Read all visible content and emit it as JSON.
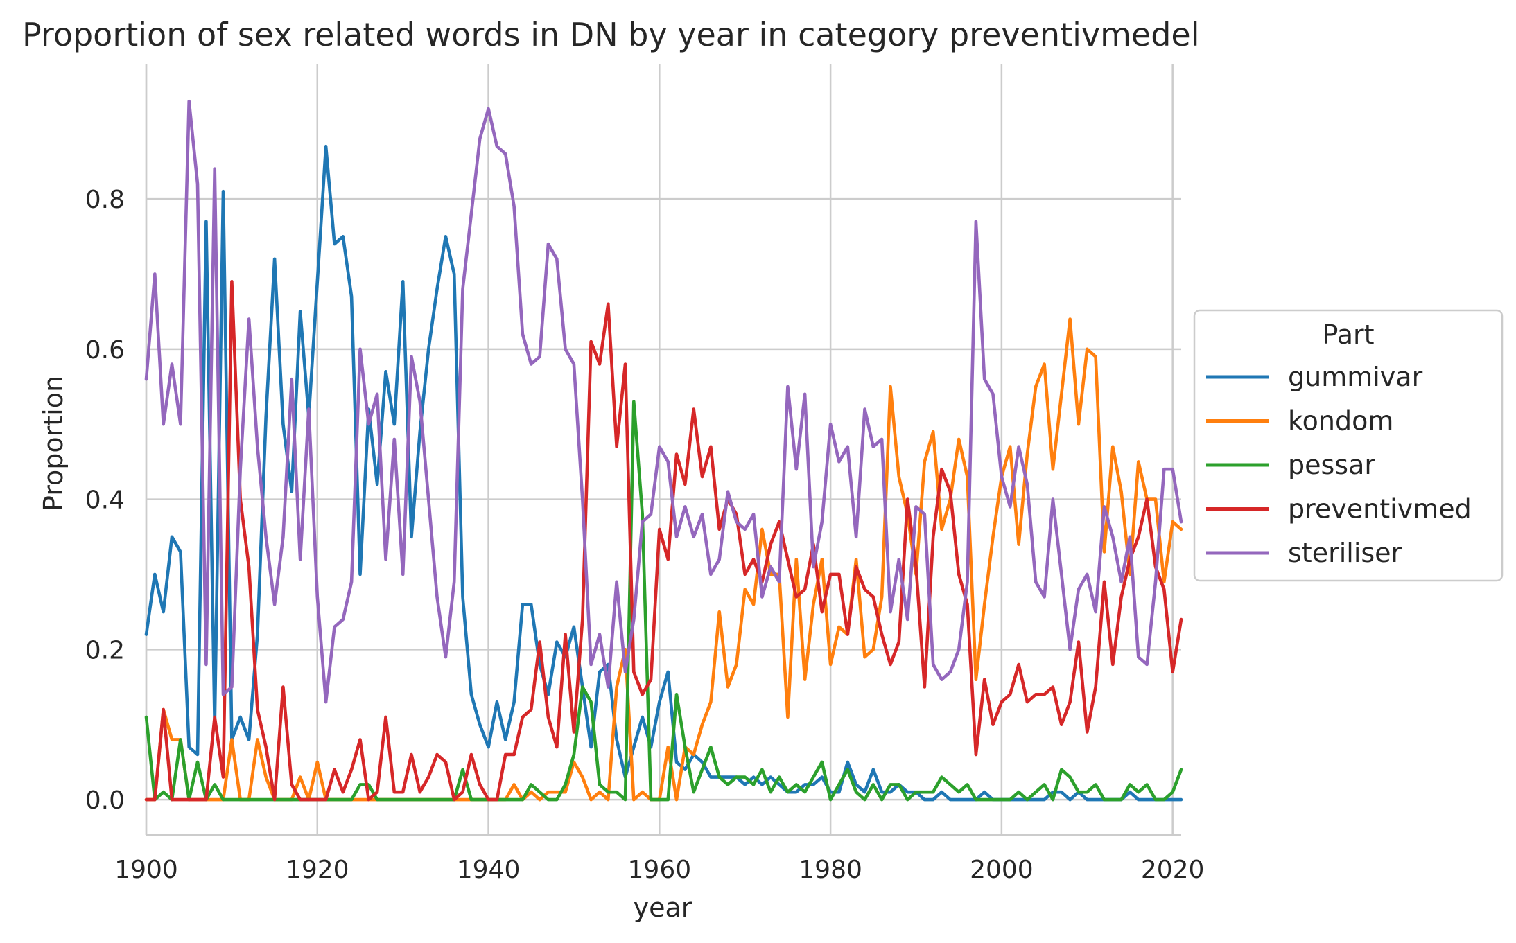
{
  "chart_data": {
    "type": "line",
    "title": "Proportion of sex related words in DN by year in category preventivmedel",
    "xlabel": "year",
    "ylabel": "Proportion",
    "xlim": [
      1900,
      2021
    ],
    "ylim": [
      -0.047,
      0.98
    ],
    "xticks": [
      1900,
      1920,
      1940,
      1960,
      1980,
      2000,
      2020
    ],
    "yticks": [
      0.0,
      0.2,
      0.4,
      0.6,
      0.8
    ],
    "ytick_labels": [
      "0.0",
      "0.2",
      "0.4",
      "0.6",
      "0.8"
    ],
    "grid": true,
    "legend": {
      "title": "Part",
      "position": "right"
    },
    "x_start": 1900,
    "series": [
      {
        "name": "gummivar",
        "color": "#1f77b4",
        "values": [
          0.22,
          0.3,
          0.25,
          0.35,
          0.33,
          0.07,
          0.06,
          0.77,
          0.1,
          0.81,
          0.08,
          0.11,
          0.08,
          0.22,
          0.51,
          0.72,
          0.5,
          0.41,
          0.65,
          0.51,
          0.69,
          0.87,
          0.74,
          0.75,
          0.67,
          0.3,
          0.52,
          0.42,
          0.57,
          0.5,
          0.69,
          0.35,
          0.49,
          0.6,
          0.68,
          0.75,
          0.7,
          0.27,
          0.14,
          0.1,
          0.07,
          0.13,
          0.08,
          0.13,
          0.26,
          0.26,
          0.18,
          0.14,
          0.21,
          0.19,
          0.23,
          0.15,
          0.07,
          0.17,
          0.18,
          0.08,
          0.03,
          0.07,
          0.11,
          0.07,
          0.13,
          0.17,
          0.05,
          0.04,
          0.06,
          0.05,
          0.03,
          0.03,
          0.03,
          0.03,
          0.02,
          0.03,
          0.02,
          0.03,
          0.02,
          0.01,
          0.01,
          0.02,
          0.02,
          0.03,
          0.01,
          0.01,
          0.05,
          0.02,
          0.01,
          0.04,
          0.01,
          0.01,
          0.02,
          0.01,
          0.01,
          0.0,
          0.0,
          0.01,
          0.0,
          0.0,
          0.0,
          0.0,
          0.01,
          0.0,
          0.0,
          0.0,
          0.0,
          0.0,
          0.0,
          0.0,
          0.01,
          0.01,
          0.0,
          0.01,
          0.0,
          0.0,
          0.0,
          0.0,
          0.0,
          0.01,
          0.0,
          0.0,
          0.0,
          0.0,
          0.0,
          0.0
        ]
      },
      {
        "name": "kondom",
        "color": "#ff7f0e",
        "values": [
          0.0,
          0.0,
          0.12,
          0.08,
          0.08,
          0.0,
          0.0,
          0.0,
          0.0,
          0.0,
          0.08,
          0.0,
          0.0,
          0.08,
          0.03,
          0.0,
          0.0,
          0.0,
          0.03,
          0.0,
          0.05,
          0.0,
          0.0,
          0.0,
          0.0,
          0.0,
          0.0,
          0.0,
          0.0,
          0.0,
          0.0,
          0.0,
          0.0,
          0.0,
          0.0,
          0.0,
          0.0,
          0.0,
          0.0,
          0.0,
          0.0,
          0.0,
          0.0,
          0.02,
          0.0,
          0.01,
          0.0,
          0.01,
          0.01,
          0.01,
          0.05,
          0.03,
          0.0,
          0.01,
          0.0,
          0.15,
          0.2,
          0.0,
          0.01,
          0.0,
          0.0,
          0.07,
          0.0,
          0.07,
          0.06,
          0.1,
          0.13,
          0.25,
          0.15,
          0.18,
          0.28,
          0.26,
          0.36,
          0.3,
          0.3,
          0.11,
          0.32,
          0.16,
          0.26,
          0.32,
          0.18,
          0.23,
          0.22,
          0.32,
          0.19,
          0.2,
          0.27,
          0.55,
          0.43,
          0.38,
          0.3,
          0.45,
          0.49,
          0.36,
          0.4,
          0.48,
          0.43,
          0.16,
          0.26,
          0.35,
          0.43,
          0.47,
          0.34,
          0.46,
          0.55,
          0.58,
          0.44,
          0.54,
          0.64,
          0.5,
          0.6,
          0.59,
          0.33,
          0.47,
          0.41,
          0.3,
          0.45,
          0.4,
          0.4,
          0.29,
          0.37,
          0.36
        ]
      },
      {
        "name": "pessar",
        "color": "#2ca02c",
        "values": [
          0.11,
          0.0,
          0.01,
          0.0,
          0.08,
          0.0,
          0.05,
          0.0,
          0.02,
          0.0,
          0.0,
          0.0,
          0.0,
          0.0,
          0.0,
          0.0,
          0.0,
          0.0,
          0.0,
          0.0,
          0.0,
          0.0,
          0.0,
          0.0,
          0.0,
          0.02,
          0.02,
          0.0,
          0.0,
          0.0,
          0.0,
          0.0,
          0.0,
          0.0,
          0.0,
          0.0,
          0.0,
          0.04,
          0.0,
          0.0,
          0.0,
          0.0,
          0.0,
          0.0,
          0.0,
          0.02,
          0.01,
          0.0,
          0.0,
          0.02,
          0.06,
          0.15,
          0.13,
          0.02,
          0.01,
          0.01,
          0.0,
          0.53,
          0.38,
          0.0,
          0.0,
          0.0,
          0.14,
          0.07,
          0.01,
          0.04,
          0.07,
          0.03,
          0.02,
          0.03,
          0.03,
          0.02,
          0.04,
          0.01,
          0.03,
          0.01,
          0.02,
          0.01,
          0.03,
          0.05,
          0.0,
          0.02,
          0.04,
          0.01,
          0.0,
          0.02,
          0.0,
          0.02,
          0.02,
          0.0,
          0.01,
          0.01,
          0.01,
          0.03,
          0.02,
          0.01,
          0.02,
          0.0,
          0.0,
          0.0,
          0.0,
          0.0,
          0.01,
          0.0,
          0.01,
          0.02,
          0.0,
          0.04,
          0.03,
          0.01,
          0.01,
          0.02,
          0.0,
          0.0,
          0.0,
          0.02,
          0.01,
          0.02,
          0.0,
          0.0,
          0.01,
          0.04
        ]
      },
      {
        "name": "preventivmed",
        "color": "#d62728",
        "values": [
          0.0,
          0.0,
          0.12,
          0.0,
          0.0,
          0.0,
          0.0,
          0.0,
          0.11,
          0.03,
          0.69,
          0.4,
          0.31,
          0.12,
          0.07,
          0.0,
          0.15,
          0.02,
          0.0,
          0.0,
          0.0,
          0.0,
          0.04,
          0.01,
          0.04,
          0.08,
          0.0,
          0.01,
          0.11,
          0.01,
          0.01,
          0.06,
          0.01,
          0.03,
          0.06,
          0.05,
          0.0,
          0.01,
          0.06,
          0.02,
          0.0,
          0.0,
          0.06,
          0.06,
          0.11,
          0.12,
          0.21,
          0.11,
          0.07,
          0.22,
          0.09,
          0.24,
          0.61,
          0.58,
          0.66,
          0.47,
          0.58,
          0.17,
          0.14,
          0.16,
          0.36,
          0.32,
          0.46,
          0.42,
          0.52,
          0.43,
          0.47,
          0.36,
          0.4,
          0.38,
          0.3,
          0.32,
          0.29,
          0.34,
          0.37,
          0.32,
          0.27,
          0.28,
          0.34,
          0.25,
          0.3,
          0.3,
          0.22,
          0.31,
          0.28,
          0.27,
          0.22,
          0.18,
          0.21,
          0.4,
          0.31,
          0.15,
          0.35,
          0.44,
          0.41,
          0.3,
          0.26,
          0.06,
          0.16,
          0.1,
          0.13,
          0.14,
          0.18,
          0.13,
          0.14,
          0.14,
          0.15,
          0.1,
          0.13,
          0.21,
          0.09,
          0.15,
          0.29,
          0.18,
          0.27,
          0.32,
          0.35,
          0.4,
          0.31,
          0.28,
          0.17,
          0.24
        ]
      },
      {
        "name": "steriliser",
        "color": "#9467bd",
        "values": [
          0.56,
          0.7,
          0.5,
          0.58,
          0.5,
          0.93,
          0.82,
          0.18,
          0.84,
          0.14,
          0.15,
          0.44,
          0.64,
          0.47,
          0.35,
          0.26,
          0.35,
          0.56,
          0.32,
          0.52,
          0.27,
          0.13,
          0.23,
          0.24,
          0.29,
          0.6,
          0.5,
          0.54,
          0.32,
          0.48,
          0.3,
          0.59,
          0.53,
          0.4,
          0.27,
          0.19,
          0.29,
          0.68,
          0.78,
          0.88,
          0.92,
          0.87,
          0.86,
          0.79,
          0.62,
          0.58,
          0.59,
          0.74,
          0.72,
          0.6,
          0.58,
          0.4,
          0.18,
          0.22,
          0.15,
          0.29,
          0.17,
          0.24,
          0.37,
          0.38,
          0.47,
          0.45,
          0.35,
          0.39,
          0.35,
          0.38,
          0.3,
          0.32,
          0.41,
          0.37,
          0.36,
          0.38,
          0.27,
          0.31,
          0.29,
          0.55,
          0.44,
          0.54,
          0.31,
          0.37,
          0.5,
          0.45,
          0.47,
          0.35,
          0.52,
          0.47,
          0.48,
          0.25,
          0.32,
          0.24,
          0.39,
          0.38,
          0.18,
          0.16,
          0.17,
          0.2,
          0.29,
          0.77,
          0.56,
          0.54,
          0.43,
          0.39,
          0.47,
          0.42,
          0.29,
          0.27,
          0.4,
          0.3,
          0.2,
          0.28,
          0.3,
          0.25,
          0.39,
          0.35,
          0.29,
          0.35,
          0.19,
          0.18,
          0.29,
          0.44,
          0.44,
          0.37
        ]
      }
    ]
  }
}
